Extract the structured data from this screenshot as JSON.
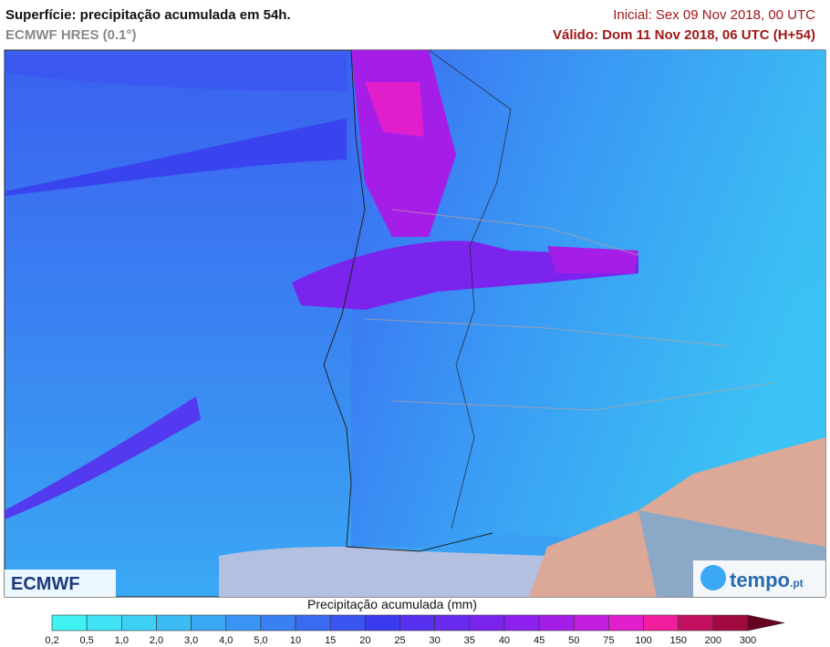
{
  "header": {
    "title": "Superfície: precipitação acumulada em 54h.",
    "model": "ECMWF HRES (0.1°)",
    "initial": "Inicial: Sex 09 Nov 2018, 00 UTC",
    "valid": "Válido: Dom 11 Nov 2018, 06 UTC (H+54)"
  },
  "logos": {
    "left": "ECMWF",
    "right": "tempo",
    "right_suffix": ".pt"
  },
  "legend": {
    "title": "Precipitação acumulada (mm)",
    "ticks": [
      "0,2",
      "0,5",
      "1,0",
      "2,0",
      "3,0",
      "4,0",
      "5,0",
      "10",
      "15",
      "20",
      "25",
      "30",
      "35",
      "40",
      "45",
      "50",
      "75",
      "100",
      "150",
      "200",
      "300"
    ],
    "colors": [
      "#40f2f2",
      "#3ee2f4",
      "#3cd0f4",
      "#3bbcf4",
      "#3aa8f4",
      "#3a94f4",
      "#3a80f2",
      "#3a6af2",
      "#3a54f0",
      "#3a3aee",
      "#5630ee",
      "#682aee",
      "#7a24ee",
      "#8c20ee",
      "#a41ee8",
      "#c21ede",
      "#e01ecc",
      "#f01e9c",
      "#c41060",
      "#a00a40",
      "#6a0020"
    ]
  }
}
